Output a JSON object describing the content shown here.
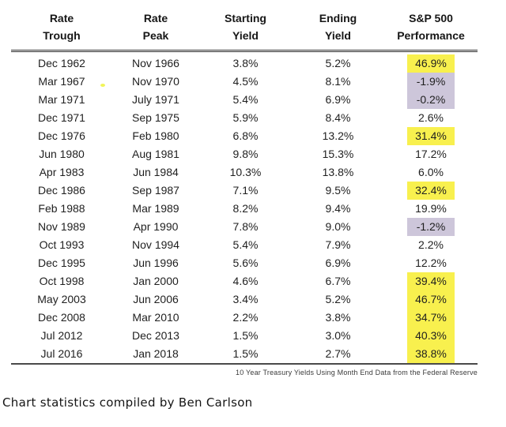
{
  "chart_data": {
    "type": "table",
    "columns": [
      {
        "l1": "Rate",
        "l2": "Trough"
      },
      {
        "l1": "Rate",
        "l2": "Peak"
      },
      {
        "l1": "Starting",
        "l2": "Yield"
      },
      {
        "l1": "Ending",
        "l2": "Yield"
      },
      {
        "l1": "S&P 500",
        "l2": "Performance"
      }
    ],
    "rows": [
      [
        "Dec 1962",
        "Nov 1966",
        "3.8%",
        "5.2%",
        "46.9%"
      ],
      [
        "Mar 1967",
        "Nov 1970",
        "4.5%",
        "8.1%",
        "-1.9%"
      ],
      [
        "Mar 1971",
        "July 1971",
        "5.4%",
        "6.9%",
        "-0.2%"
      ],
      [
        "Dec 1971",
        "Sep 1975",
        "5.9%",
        "8.4%",
        "2.6%"
      ],
      [
        "Dec 1976",
        "Feb 1980",
        "6.8%",
        "13.2%",
        "31.4%"
      ],
      [
        "Jun 1980",
        "Aug 1981",
        "9.8%",
        "15.3%",
        "17.2%"
      ],
      [
        "Apr 1983",
        "Jun 1984",
        "10.3%",
        "13.8%",
        "6.0%"
      ],
      [
        "Dec 1986",
        "Sep 1987",
        "7.1%",
        "9.5%",
        "32.4%"
      ],
      [
        "Feb 1988",
        "Mar 1989",
        "8.2%",
        "9.4%",
        "19.9%"
      ],
      [
        "Nov 1989",
        "Apr 1990",
        "7.8%",
        "9.0%",
        "-1.2%"
      ],
      [
        "Oct 1993",
        "Nov 1994",
        "5.4%",
        "7.9%",
        "2.2%"
      ],
      [
        "Dec 1995",
        "Jun 1996",
        "5.6%",
        "6.9%",
        "12.2%"
      ],
      [
        "Oct 1998",
        "Jan 2000",
        "4.6%",
        "6.7%",
        "39.4%"
      ],
      [
        "May 2003",
        "Jun 2006",
        "3.4%",
        "5.2%",
        "46.7%"
      ],
      [
        "Dec 2008",
        "Mar 2010",
        "2.2%",
        "3.8%",
        "34.7%"
      ],
      [
        "Jul 2012",
        "Dec 2013",
        "1.5%",
        "3.0%",
        "40.3%"
      ],
      [
        "Jul 2016",
        "Jan 2018",
        "1.5%",
        "2.7%",
        "38.8%"
      ]
    ],
    "row_highlights": [
      "yellow",
      "purple",
      "purple",
      null,
      "yellow",
      null,
      null,
      "yellow",
      null,
      "purple",
      null,
      null,
      "yellow",
      "yellow",
      "yellow",
      "yellow",
      "yellow"
    ],
    "footnote": "10 Year Treasury Yields Using Month End Data from the Federal Reserve",
    "legend_position": "none",
    "grid": false
  },
  "caption": "Chart statistics compiled by Ben Carlson",
  "colors": {
    "highlight_yellow": "#f8f04e",
    "highlight_purple": "#cdc6da",
    "header_rule": "#2e2e2e",
    "bottom_rule": "#4a4a4a"
  }
}
